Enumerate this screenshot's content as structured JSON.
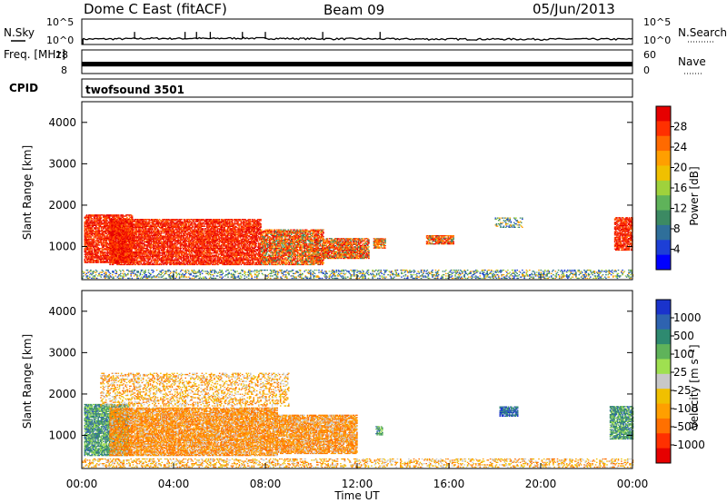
{
  "header": {
    "station": "Dome C East (fitACF)",
    "beam": "Beam 09",
    "date": "05/Jun/2013",
    "cpid_label": "CPID",
    "cpid_value": "twofsound 3501"
  },
  "chart_data": [
    {
      "type": "line",
      "name": "N.Sky / N.Search",
      "left_label": "N.Sky",
      "right_label": "N.Search",
      "ytick_labels_left": [
        "10^5",
        "10^0"
      ],
      "ytick_labels_right": [
        "10^5",
        "10^0"
      ],
      "scale": "log",
      "ylim": [
        1,
        100000
      ],
      "x": [
        0,
        2.3,
        3.0,
        4.5,
        5.0,
        5.5,
        6.0,
        7.0,
        8.0,
        10.5,
        13,
        16,
        20,
        24
      ],
      "series": [
        {
          "values": [
            10,
            12,
            14,
            13,
            15,
            12,
            14,
            16,
            14,
            12,
            11,
            10,
            10,
            10
          ]
        }
      ],
      "spikes_at": [
        0.05,
        2.3,
        4.5,
        5.0,
        5.6,
        7.0,
        8.0,
        10.5,
        13.0
      ]
    },
    {
      "type": "line",
      "name": "Freq / Nave",
      "left_label": "Freq. [MHz]",
      "right_label": "Nave",
      "ytick_labels_left": [
        "18",
        "8"
      ],
      "ytick_labels_right": [
        "60",
        "0"
      ],
      "x": [
        0,
        24
      ],
      "freq_band_mhz": [
        11,
        13
      ]
    },
    {
      "type": "heatmap",
      "name": "Power",
      "ylabel": "Slant Range [km]",
      "yticks": [
        1000,
        2000,
        3000,
        4000
      ],
      "ylim": [
        200,
        4500
      ],
      "xlim": [
        0,
        24
      ],
      "colorbar": {
        "label": "Power [dB]",
        "ticks": [
          "28",
          "24",
          "20",
          "16",
          "12",
          "8",
          "4"
        ],
        "colors": [
          "#e60000",
          "#ff3000",
          "#ff6a00",
          "#ff9f00",
          "#f0c000",
          "#9fd23c",
          "#5fb35a",
          "#3c8a63",
          "#2f6f9a",
          "#1d3fd6",
          "#0000ff"
        ]
      },
      "regions": [
        {
          "t": [
            0.1,
            2.2
          ],
          "r": [
            600,
            1750
          ],
          "level": "high"
        },
        {
          "t": [
            1.2,
            7.8
          ],
          "r": [
            550,
            1650
          ],
          "level": "high"
        },
        {
          "t": [
            7.8,
            10.5
          ],
          "r": [
            550,
            1400
          ],
          "level": "mid"
        },
        {
          "t": [
            10.5,
            12.5
          ],
          "r": [
            700,
            1200
          ],
          "level": "mid"
        },
        {
          "t": [
            12.7,
            13.2
          ],
          "r": [
            950,
            1200
          ],
          "level": "mid"
        },
        {
          "t": [
            15.0,
            16.2
          ],
          "r": [
            1050,
            1250
          ],
          "level": "mid"
        },
        {
          "t": [
            18.0,
            19.2
          ],
          "r": [
            1450,
            1700
          ],
          "level": "low"
        },
        {
          "t": [
            23.2,
            24.0
          ],
          "r": [
            900,
            1700
          ],
          "level": "high"
        },
        {
          "t": [
            0.0,
            24.0
          ],
          "r": [
            220,
            420
          ],
          "level": "low"
        }
      ]
    },
    {
      "type": "heatmap",
      "name": "Velocity",
      "ylabel": "Slant Range [km]",
      "yticks": [
        1000,
        2000,
        3000,
        4000
      ],
      "ylim": [
        200,
        4500
      ],
      "xlim": [
        0,
        24
      ],
      "xlabel": "Time UT",
      "xtick_labels": [
        "00:00",
        "04:00",
        "08:00",
        "12:00",
        "16:00",
        "20:00",
        "00:00"
      ],
      "colorbar": {
        "label": "Velocity [m s⁻¹]",
        "ticks": [
          "1000",
          "500",
          "100",
          "25",
          "-25",
          "-100",
          "-500",
          "-1000"
        ],
        "colors": [
          "#1a33cc",
          "#2e63b0",
          "#2e8a70",
          "#5fb35a",
          "#9fe050",
          "#c8c8c8",
          "#f0c000",
          "#ff9f00",
          "#ff7000",
          "#ff3000",
          "#e60000"
        ]
      },
      "regions": [
        {
          "t": [
            0.1,
            2.0
          ],
          "r": [
            500,
            1750
          ],
          "level": "green"
        },
        {
          "t": [
            1.2,
            8.5
          ],
          "r": [
            500,
            1650
          ],
          "level": "orange"
        },
        {
          "t": [
            8.5,
            12.0
          ],
          "r": [
            550,
            1500
          ],
          "level": "orange"
        },
        {
          "t": [
            0.8,
            9.0
          ],
          "r": [
            1700,
            2500
          ],
          "level": "orange-sparse"
        },
        {
          "t": [
            12.8,
            13.1
          ],
          "r": [
            1000,
            1200
          ],
          "level": "green"
        },
        {
          "t": [
            18.2,
            19.0
          ],
          "r": [
            1450,
            1700
          ],
          "level": "blue"
        },
        {
          "t": [
            23.0,
            24.0
          ],
          "r": [
            900,
            1700
          ],
          "level": "green"
        },
        {
          "t": [
            0.0,
            24.0
          ],
          "r": [
            220,
            420
          ],
          "level": "orange-sparse"
        }
      ]
    }
  ]
}
